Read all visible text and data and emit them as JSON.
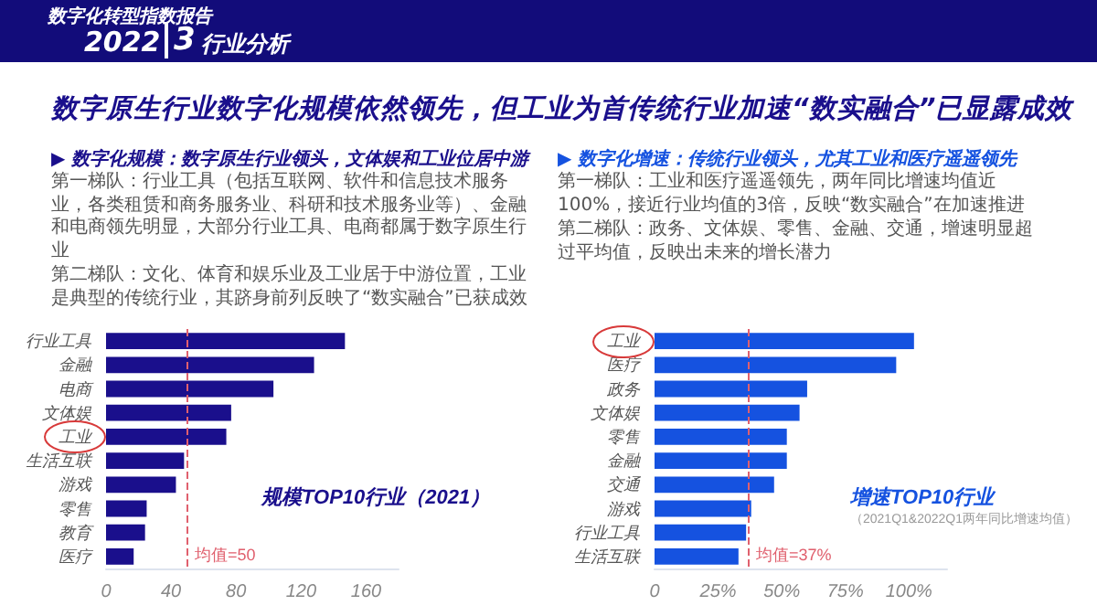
{
  "chart_data": [
    {
      "type": "bar",
      "orientation": "horizontal",
      "title": "规模TOP10行业（2021）",
      "annotations": [
        "数字化转型指数报告",
        "2022",
        "3",
        "行业分析",
        "数字原生行业数字化规模依然领先，但工业为首传统行业加速“数实融合”已显露成效",
        "▶ 数字化规模：数字原生行业领头，文体娱和工业位居中游",
        "第一梯队：行业工具（包括互联网、软件和信息技术服务业，各类租赁和商务服务业、科研和技术服务业等）、金融和电商领先明显，大部分行业工具、电商都属于数字原生行业",
        "第二梯队：文化、体育和娱乐业及工业居于中游位置，工业是典型的传统行业，其跻身前列反映了“数实融合”已获成效"
      ],
      "categories": [
        "行业工具",
        "金融",
        "电商",
        "文体娱",
        "工业",
        "生活互联",
        "游戏",
        "零售",
        "教育",
        "医疗"
      ],
      "values": [
        147,
        128,
        103,
        77,
        74,
        48,
        43,
        25,
        24,
        17
      ],
      "color": "#1a0f8c",
      "xlim": [
        0,
        180
      ],
      "xticks": [
        0,
        40,
        80,
        120,
        160
      ],
      "ref_lines": [
        {
          "axis": "x",
          "value": 50,
          "label": "均值=50",
          "color": "#e0606e",
          "line_style": "dashed"
        }
      ]
    },
    {
      "type": "bar",
      "orientation": "horizontal",
      "title": "增速TOP10行业",
      "subtitle": "（2021Q1&2022Q1两年同比增速均值）",
      "annotations": [
        "▶ 数字化增速：传统行业领头，尤其工业和医疗遥遥领先",
        "第一梯队：工业和医疗遥遥领先，两年同比增速均值近100%，接近行业均值的3倍，反映“数实融合”在加速推进",
        "第二梯队：政务、文体娱、零售、金融、交通，增速明显超过平均值，反映出未来的增长潜力"
      ],
      "categories": [
        "工业",
        "医疗",
        "政务",
        "文体娱",
        "零售",
        "金融",
        "交通",
        "游戏",
        "行业工具",
        "生活互联"
      ],
      "values": [
        102,
        95,
        60,
        57,
        52,
        52,
        47,
        38,
        36,
        33
      ],
      "color": "#1552e0",
      "xlim": [
        0,
        115
      ],
      "xticks": [
        0,
        {
          "value": 25,
          "label": "25%"
        },
        {
          "value": 50,
          "label": "50%"
        },
        {
          "value": 75,
          "label": "75%"
        },
        {
          "value": 100,
          "label": "100%"
        }
      ],
      "ref_lines": [
        {
          "axis": "x",
          "value": 37,
          "label": "均值=37%",
          "color": "#e0606e",
          "line_style": "dashed"
        }
      ]
    }
  ]
}
